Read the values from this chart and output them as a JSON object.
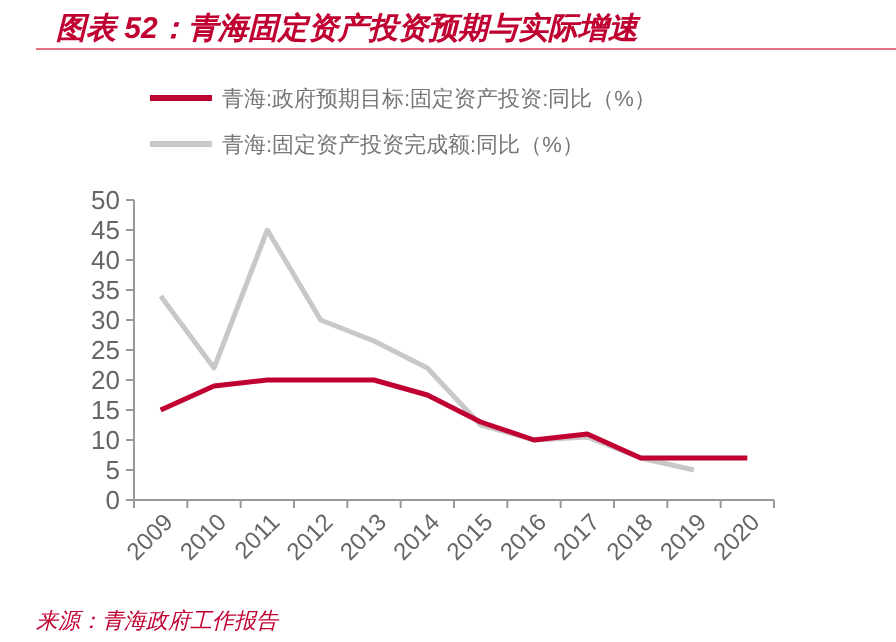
{
  "chart_data": {
    "type": "line",
    "title": "图表 52：青海固定资产投资预期与实际增速",
    "categories": [
      "2009",
      "2010",
      "2011",
      "2012",
      "2013",
      "2014",
      "2015",
      "2016",
      "2017",
      "2018",
      "2019",
      "2020"
    ],
    "series": [
      {
        "name": "青海:政府预期目标:固定资产投资:同比（%）",
        "color": "#c00030",
        "values": [
          15,
          19,
          20,
          20,
          20,
          17.5,
          13,
          10,
          11,
          7,
          7,
          7
        ]
      },
      {
        "name": "青海:固定资产投资完成额:同比（%）",
        "color": "#c8c8c8",
        "values": [
          34,
          22,
          45,
          30,
          26.5,
          22,
          12.5,
          10,
          10.5,
          7,
          5,
          null
        ]
      }
    ],
    "ylim": [
      0,
      50
    ],
    "yticks": [
      0,
      5,
      10,
      15,
      20,
      25,
      30,
      35,
      40,
      45,
      50
    ],
    "grid": false,
    "legend": "top",
    "marker": "none",
    "line_style": "solid",
    "annotations": [
      "来源：青海政府工作报告"
    ]
  }
}
